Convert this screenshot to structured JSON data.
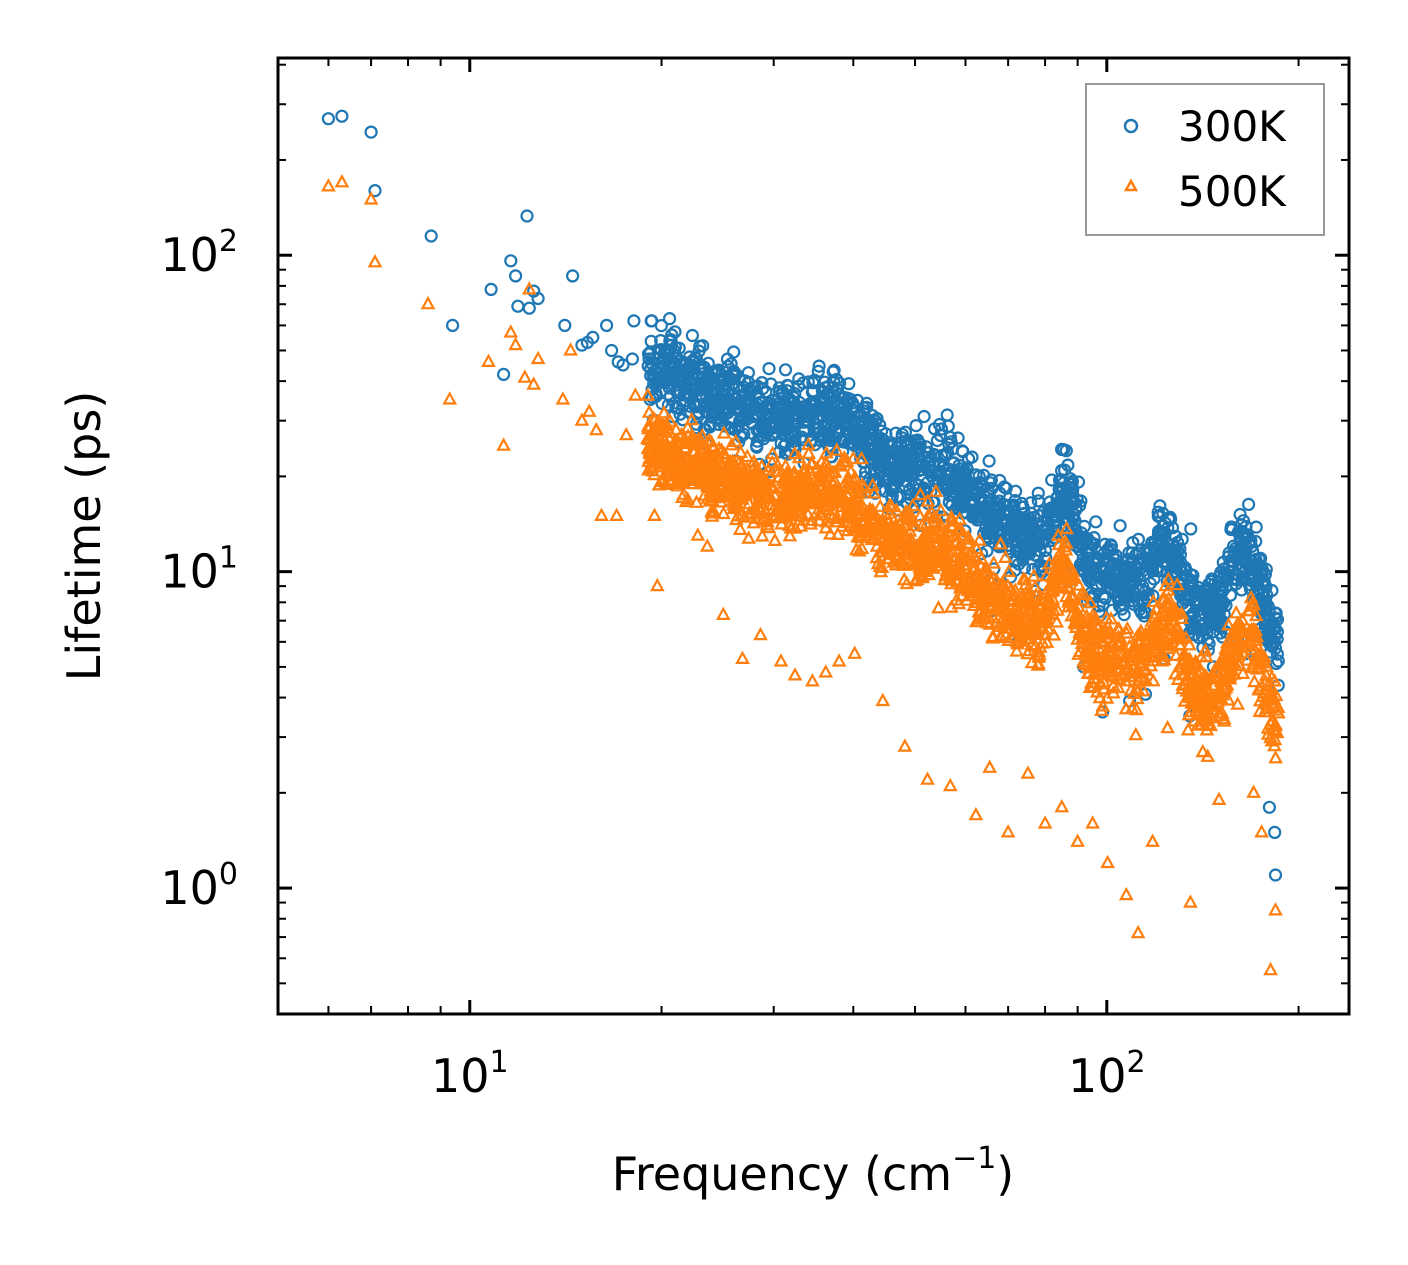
{
  "chart_data": {
    "type": "scatter",
    "xscale": "log",
    "yscale": "log",
    "xlim": [
      5,
      240
    ],
    "ylim": [
      0.4,
      420
    ],
    "x_ticks": [
      {
        "value": 10,
        "base": "10",
        "exp": "1"
      },
      {
        "value": 100,
        "base": "10",
        "exp": "2"
      }
    ],
    "y_ticks": [
      {
        "value": 1,
        "base": "10",
        "exp": "0"
      },
      {
        "value": 10,
        "base": "10",
        "exp": "1"
      },
      {
        "value": 100,
        "base": "10",
        "exp": "2"
      }
    ],
    "xlabel": {
      "text": "Frequency (cm",
      "sup": "−1",
      "close": ")"
    },
    "ylabel": "Lifetime (ps)",
    "legend": {
      "position": "top-right"
    },
    "series": [
      {
        "name": "300K",
        "marker": "circle",
        "color": "#1f77b4",
        "points": [
          [
            6.0,
            270
          ],
          [
            6.3,
            275
          ],
          [
            7.0,
            245
          ],
          [
            7.1,
            160
          ],
          [
            8.7,
            115
          ],
          [
            9.4,
            60
          ],
          [
            10.8,
            78
          ],
          [
            11.3,
            42
          ],
          [
            11.6,
            96
          ],
          [
            11.8,
            86
          ],
          [
            11.9,
            69
          ],
          [
            12.3,
            133
          ],
          [
            12.4,
            68
          ],
          [
            12.6,
            77
          ],
          [
            12.8,
            73
          ],
          [
            14.1,
            60
          ],
          [
            14.5,
            86
          ],
          [
            15.0,
            52
          ],
          [
            15.3,
            53
          ],
          [
            15.6,
            55
          ],
          [
            16.4,
            60
          ],
          [
            16.7,
            50
          ],
          [
            17.1,
            46
          ],
          [
            17.4,
            45
          ],
          [
            18.1,
            62
          ],
          [
            18.0,
            47
          ],
          [
            19.2,
            35
          ],
          [
            20.3,
            49
          ],
          [
            20.5,
            42
          ],
          [
            21.5,
            40
          ],
          [
            22.1,
            38
          ],
          [
            23.0,
            36
          ],
          [
            24.8,
            34
          ],
          [
            26.6,
            27
          ],
          [
            28.2,
            25
          ],
          [
            29.8,
            27
          ],
          [
            31.8,
            24
          ],
          [
            33.5,
            22
          ],
          [
            36.0,
            26
          ],
          [
            38.5,
            24
          ],
          [
            40.2,
            25
          ],
          [
            41.0,
            18
          ],
          [
            43.2,
            21
          ],
          [
            46.0,
            17
          ],
          [
            49.8,
            16
          ],
          [
            51.0,
            14
          ],
          [
            54.1,
            15
          ],
          [
            55.4,
            14
          ],
          [
            63.2,
            8.6
          ],
          [
            65.6,
            7.5
          ],
          [
            72.5,
            6.0
          ],
          [
            79.5,
            7.0
          ],
          [
            85.1,
            9.5
          ],
          [
            86.2,
            9.9
          ],
          [
            87.0,
            9.3
          ],
          [
            92.0,
            5.0
          ],
          [
            98.5,
            3.6
          ],
          [
            108.6,
            3.9
          ],
          [
            115.0,
            4.1
          ],
          [
            123.1,
            5.3
          ],
          [
            135.0,
            3.5
          ],
          [
            147.0,
            5.0
          ],
          [
            160.6,
            6.0
          ],
          [
            165.0,
            5.5
          ],
          [
            180.0,
            1.8
          ],
          [
            183.5,
            1.5
          ],
          [
            184.0,
            1.1
          ]
        ]
      },
      {
        "name": "500K",
        "marker": "triangle",
        "color": "#ff7f0e",
        "points": [
          [
            6.0,
            165
          ],
          [
            6.3,
            170
          ],
          [
            7.0,
            150
          ],
          [
            7.1,
            95
          ],
          [
            8.6,
            70
          ],
          [
            9.3,
            35
          ],
          [
            10.7,
            46
          ],
          [
            11.3,
            25
          ],
          [
            11.6,
            57
          ],
          [
            11.8,
            52
          ],
          [
            12.2,
            41
          ],
          [
            12.4,
            78
          ],
          [
            12.6,
            39
          ],
          [
            12.8,
            47
          ],
          [
            14.0,
            35
          ],
          [
            14.4,
            50
          ],
          [
            15.0,
            30
          ],
          [
            15.4,
            32
          ],
          [
            15.8,
            28
          ],
          [
            16.1,
            15
          ],
          [
            17.0,
            15
          ],
          [
            17.6,
            27
          ],
          [
            18.2,
            36
          ],
          [
            19.5,
            15
          ],
          [
            19.7,
            9
          ],
          [
            20.3,
            29
          ],
          [
            21.0,
            20
          ],
          [
            22.1,
            20
          ],
          [
            22.8,
            13
          ],
          [
            23.6,
            12
          ],
          [
            25.0,
            7.3
          ],
          [
            26.8,
            5.3
          ],
          [
            28.6,
            6.3
          ],
          [
            30.8,
            5.2
          ],
          [
            32.4,
            4.7
          ],
          [
            34.5,
            4.5
          ],
          [
            36.2,
            4.8
          ],
          [
            38.0,
            5.2
          ],
          [
            40.2,
            5.5
          ],
          [
            44.5,
            3.9
          ],
          [
            48.2,
            2.8
          ],
          [
            52.3,
            2.2
          ],
          [
            56.8,
            2.1
          ],
          [
            62.3,
            1.7
          ],
          [
            65.5,
            2.4
          ],
          [
            70.0,
            1.5
          ],
          [
            75.2,
            2.3
          ],
          [
            80.0,
            1.6
          ],
          [
            85.0,
            1.8
          ],
          [
            90.0,
            1.4
          ],
          [
            95.0,
            1.6
          ],
          [
            100.3,
            1.2
          ],
          [
            107.3,
            0.95
          ],
          [
            112.0,
            0.72
          ],
          [
            118.0,
            1.4
          ],
          [
            124.6,
            3.2
          ],
          [
            135.3,
            0.9
          ],
          [
            144.0,
            2.6
          ],
          [
            150.0,
            1.9
          ],
          [
            160.5,
            3.8
          ],
          [
            170.0,
            2.0
          ],
          [
            175.0,
            1.5
          ],
          [
            180.8,
            0.55
          ],
          [
            184.0,
            0.85
          ]
        ],
        "trend": "power-law decay; 500K lifetimes roughly 0.55x those at 300K"
      }
    ]
  }
}
